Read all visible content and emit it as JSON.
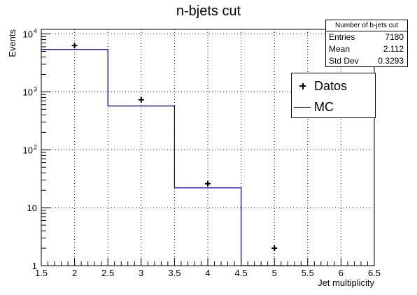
{
  "chart_data": {
    "type": "histogram",
    "title": "n-bjets cut",
    "xlabel": "Jet multiplicity",
    "ylabel": "Events",
    "xlim": [
      1.5,
      6.5
    ],
    "ylim": [
      1,
      12000
    ],
    "yscale": "log",
    "grid": true,
    "x_ticks": [
      "1.5",
      "2",
      "2.5",
      "3",
      "3.5",
      "4",
      "4.5",
      "5",
      "5.5",
      "6",
      "6.5"
    ],
    "y_ticks": [
      {
        "value": 1,
        "label": "1"
      },
      {
        "value": 10,
        "label": "10"
      },
      {
        "value": 100,
        "label": "10",
        "exp": "2"
      },
      {
        "value": 1000,
        "label": "10",
        "exp": "3"
      },
      {
        "value": 10000,
        "label": "10",
        "exp": "4"
      }
    ],
    "mc_bins": [
      {
        "low": 1.5,
        "high": 2.5,
        "value": 5400
      },
      {
        "low": 2.5,
        "high": 3.5,
        "value": 570
      },
      {
        "low": 3.5,
        "high": 4.5,
        "value": 22
      },
      {
        "low": 4.5,
        "high": 5.5,
        "value": 0
      }
    ],
    "data_points": [
      {
        "x": 2,
        "y": 6300
      },
      {
        "x": 3,
        "y": 730
      },
      {
        "x": 4,
        "y": 26
      },
      {
        "x": 5,
        "y": 2
      }
    ],
    "colors": {
      "mc": "#000099",
      "data": "#000000",
      "grid": "#000000"
    }
  },
  "stats": {
    "title": "Number of b-jets cut",
    "rows": [
      {
        "label": "Entries",
        "value": "7180"
      },
      {
        "label": "Mean",
        "value": "2.112"
      },
      {
        "label": "Std Dev",
        "value": "0.3293"
      }
    ]
  },
  "legend": {
    "items": [
      {
        "name": "Datos",
        "symbol": "cross"
      },
      {
        "name": "MC",
        "symbol": "line"
      }
    ]
  }
}
